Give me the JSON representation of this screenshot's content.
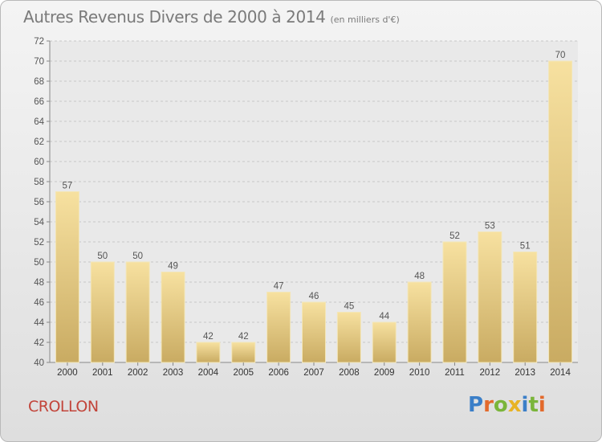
{
  "title": "Autres Revenus Divers de 2000 à 2014",
  "subtitle": "(en milliers d'€)",
  "location": "CROLLON",
  "logo": {
    "p": "P",
    "r": "r",
    "o": "o",
    "x": "x",
    "i1": "i",
    "t": "t",
    "i2": "i"
  },
  "colors": {
    "bar_light": "#f7e1a0",
    "bar_dark": "#c9ab62",
    "grid": "#c8c8c8",
    "city": "#c2443a"
  },
  "chart_data": {
    "type": "bar",
    "categories": [
      "2000",
      "2001",
      "2002",
      "2003",
      "2004",
      "2005",
      "2006",
      "2007",
      "2008",
      "2009",
      "2010",
      "2011",
      "2012",
      "2013",
      "2014"
    ],
    "values": [
      57,
      50,
      50,
      49,
      42,
      42,
      47,
      46,
      45,
      44,
      48,
      52,
      53,
      51,
      70
    ],
    "ylim": [
      40,
      72
    ],
    "yticks": [
      40,
      42,
      44,
      46,
      48,
      50,
      52,
      54,
      56,
      58,
      60,
      62,
      64,
      66,
      68,
      70,
      72
    ],
    "grid": true,
    "legend": "none"
  }
}
